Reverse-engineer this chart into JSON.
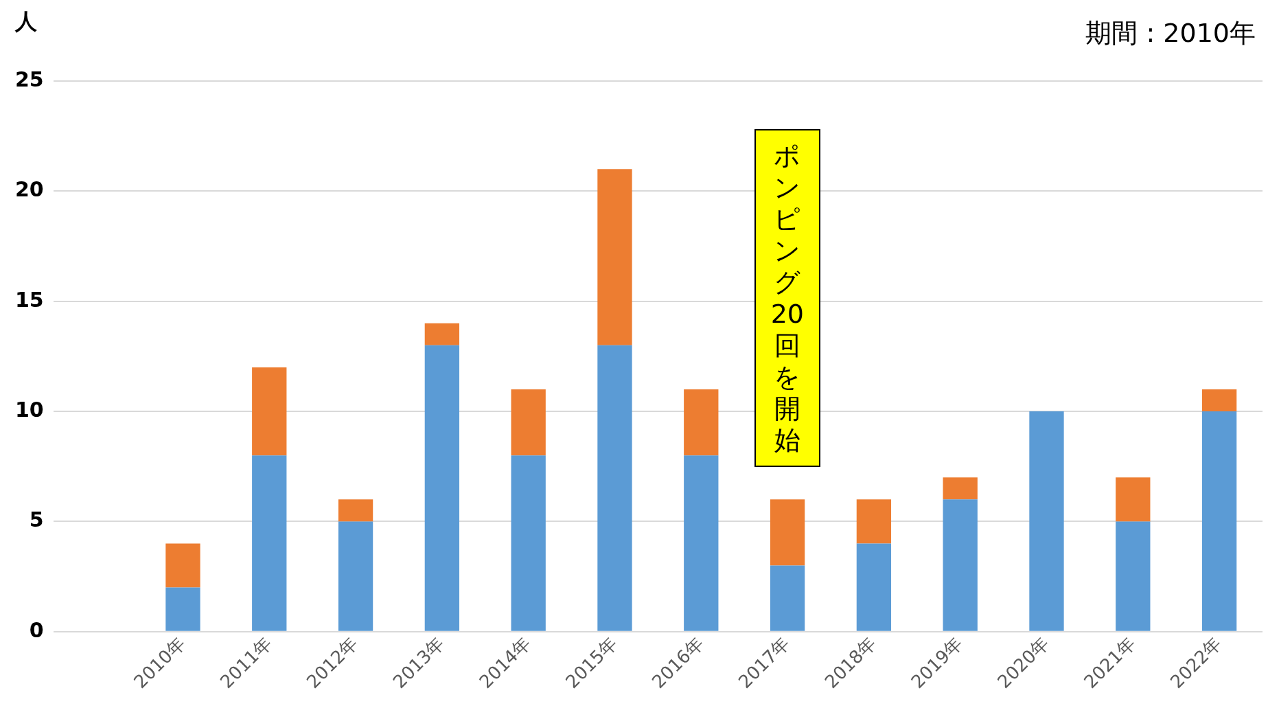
{
  "chart_data": {
    "type": "bar",
    "title": "期間 : 2010年",
    "ylabel": "人",
    "stacked": true,
    "categories": [
      null,
      "2010年",
      "2011年",
      "2012年",
      "2013年",
      "2014年",
      "2015年",
      "2016年",
      "2017年",
      "2018年",
      "2019年",
      "2020年",
      "2021年",
      "2022年"
    ],
    "series": [
      {
        "color": "#5b9bd5",
        "values": [
          null,
          2,
          8,
          5,
          13,
          8,
          13,
          8,
          3,
          4,
          6,
          10,
          5,
          10
        ]
      },
      {
        "color": "#ed7d31",
        "values": [
          null,
          2,
          4,
          1,
          1,
          3,
          8,
          3,
          3,
          2,
          1,
          0,
          2,
          1
        ]
      }
    ],
    "ylim": [
      0,
      25
    ],
    "yticks": [
      0,
      5,
      10,
      15,
      20,
      25
    ],
    "grid": "y",
    "legend": false,
    "annotations": [
      "ポンピング20回を開始"
    ]
  }
}
